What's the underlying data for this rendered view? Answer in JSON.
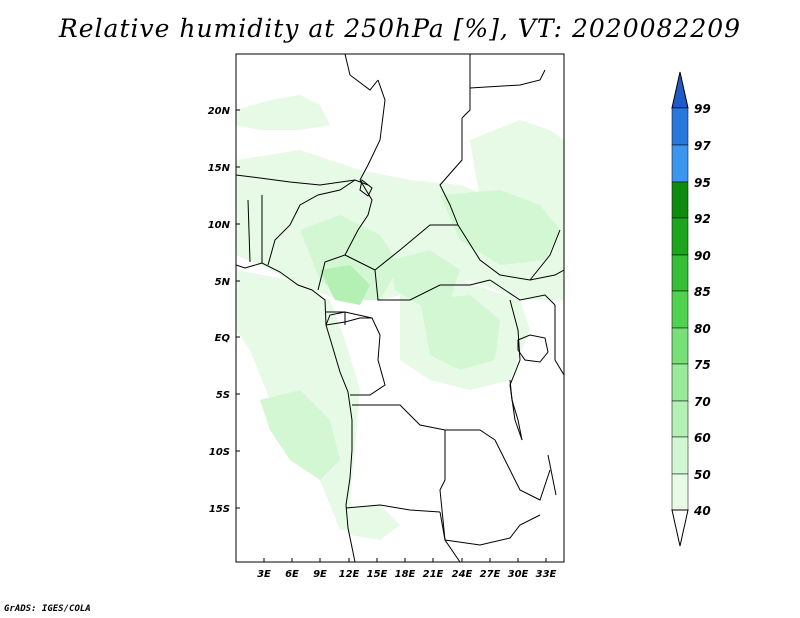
{
  "title": "Relative humidity at 250hPa [%], VT: 2020082209",
  "credit": "GrADS: IGES/COLA",
  "map": {
    "variable": "Relative humidity",
    "level": "250hPa",
    "units": "%",
    "valid_time": "2020082209",
    "lat_ticks": [
      "20N",
      "15N",
      "10N",
      "5N",
      "EQ",
      "5S",
      "10S",
      "15S"
    ],
    "lon_ticks": [
      "3E",
      "6E",
      "9E",
      "12E",
      "15E",
      "18E",
      "21E",
      "24E",
      "27E",
      "30E",
      "33E"
    ]
  },
  "colorbar": {
    "levels": [
      "40",
      "50",
      "60",
      "70",
      "75",
      "80",
      "85",
      "90",
      "92",
      "95",
      "97",
      "99"
    ],
    "colors": {
      "lt40": "#ffffff",
      "b40_50": "#e6fae6",
      "b50_60": "#d2f7d2",
      "b60_70": "#b4f0b4",
      "b70_75": "#9be99b",
      "b75_80": "#78e078",
      "b80_85": "#50d250",
      "b85_90": "#37be37",
      "b90_92": "#1ea51e",
      "b92_95": "#0f8c0f",
      "b95_97": "#3c96f0",
      "b97_99": "#2878dc",
      "gt99": "#1e5ac8"
    }
  }
}
